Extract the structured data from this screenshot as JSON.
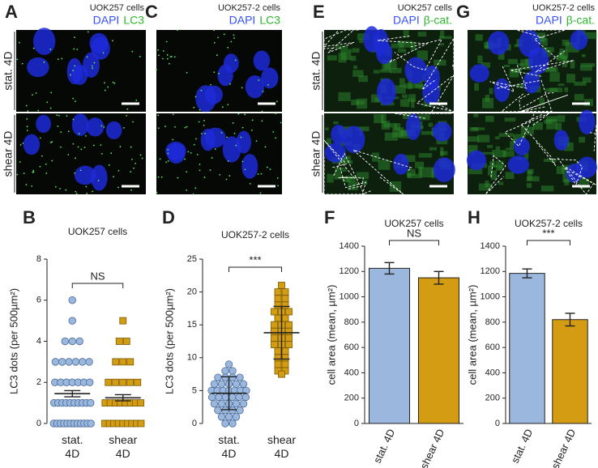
{
  "image_panels": [
    {
      "panel": "A",
      "title": "UOK257 cells",
      "channels": [
        {
          "name": "DAPI",
          "color": "#3450ff"
        },
        {
          "name": "LC3",
          "color": "#2db82d"
        }
      ],
      "row_labels": [
        "stat. 4D",
        "shear 4D"
      ],
      "outlines": false
    },
    {
      "panel": "C",
      "title": "UOK257-2 cells",
      "channels": [
        {
          "name": "DAPI",
          "color": "#3450ff"
        },
        {
          "name": "LC3",
          "color": "#2db82d"
        }
      ],
      "outlines": false
    },
    {
      "panel": "E",
      "title": "UOK257 cells",
      "channels": [
        {
          "name": "DAPI",
          "color": "#3450ff"
        },
        {
          "name": "β-cat.",
          "color": "#2db82d"
        }
      ],
      "row_labels": [
        "stat. 4D",
        "shear 4D"
      ],
      "outlines": true
    },
    {
      "panel": "G",
      "title": "UOK257-2 cells",
      "channels": [
        {
          "name": "DAPI",
          "color": "#3450ff"
        },
        {
          "name": "β-cat.",
          "color": "#2db82d"
        }
      ],
      "outlines": true
    }
  ],
  "chart_data": [
    {
      "type": "strip",
      "panel": "B",
      "title": "UOK257 cells",
      "y_label": "LC3 dots (per 500µm²)",
      "categories": [
        "stat. 4D",
        "shear 4D"
      ],
      "ylim": [
        0,
        8
      ],
      "yticks": [
        0,
        2,
        4,
        6,
        8
      ],
      "series": [
        {
          "name": "stat. 4D",
          "color": "#9bb7de",
          "edge": "#4a6c9b",
          "mean": 1.45,
          "error": 0.15,
          "values": [
            6,
            5,
            4,
            4,
            4,
            3,
            3,
            3,
            3,
            3,
            3,
            2,
            2,
            2,
            2,
            2,
            2,
            2,
            1,
            1,
            1,
            1,
            1,
            1,
            1,
            1,
            1,
            1,
            0,
            0,
            0,
            0,
            0,
            0,
            0,
            0,
            0,
            0,
            0,
            0
          ]
        },
        {
          "name": "shear 4D",
          "color": "#d39c12",
          "edge": "#7a5a00",
          "mean": 1.25,
          "error": 0.15,
          "values": [
            5,
            4,
            4,
            3,
            3,
            3,
            2,
            2,
            2,
            2,
            2,
            1,
            1,
            1,
            1,
            1,
            1,
            1,
            1,
            0,
            0,
            0,
            0,
            0,
            0,
            0,
            0,
            0
          ]
        }
      ],
      "annotation": "NS"
    },
    {
      "type": "strip",
      "panel": "D",
      "title": "UOK257-2 cells",
      "y_label": "LC3 dots (per 500µm²)",
      "categories": [
        "stat. 4D",
        "shear 4D"
      ],
      "ylim": [
        0,
        25
      ],
      "yticks": [
        0,
        5,
        10,
        15,
        20,
        25
      ],
      "series": [
        {
          "name": "stat. 4D",
          "color": "#9bb7de",
          "edge": "#4a6c9b",
          "mean": 4.6,
          "error": 2.5,
          "values": [
            9,
            8,
            8,
            7,
            7,
            7,
            7,
            6,
            6,
            6,
            6,
            6,
            5,
            5,
            5,
            5,
            5,
            5,
            5,
            4,
            4,
            4,
            4,
            4,
            4,
            3,
            3,
            3,
            3,
            3,
            2,
            2,
            2,
            2,
            1,
            1,
            1,
            0,
            0
          ]
        },
        {
          "name": "shear 4D",
          "color": "#d39c12",
          "edge": "#7a5a00",
          "mean": 13.8,
          "error": 4,
          "values": [
            21,
            20,
            20,
            19,
            19,
            18,
            18,
            17,
            17,
            17,
            16,
            16,
            15,
            15,
            15,
            14,
            14,
            14,
            13,
            13,
            13,
            12,
            12,
            12,
            11,
            11,
            10,
            10,
            9,
            9,
            8,
            8,
            7.5
          ]
        }
      ],
      "annotation": "***"
    },
    {
      "type": "bar",
      "panel": "F",
      "title": "UOK257 cells",
      "y_label": "cell area (mean, µm²)",
      "categories": [
        "stat. 4D",
        "shear 4D"
      ],
      "values": [
        1225,
        1150
      ],
      "errors": [
        45,
        50
      ],
      "colors": [
        "#9bb7de",
        "#d39c12"
      ],
      "ylim": [
        0,
        1400
      ],
      "yticks": [
        0,
        200,
        400,
        600,
        800,
        1000,
        1200,
        1400
      ],
      "annotation": "NS"
    },
    {
      "type": "bar",
      "panel": "H",
      "title": "UOK257-2 cells",
      "y_label": "cell area (mean, µm²)",
      "categories": [
        "stat. 4D",
        "shear 4D"
      ],
      "values": [
        1185,
        820
      ],
      "errors": [
        35,
        50
      ],
      "colors": [
        "#9bb7de",
        "#d39c12"
      ],
      "ylim": [
        0,
        1400
      ],
      "yticks": [
        0,
        200,
        400,
        600,
        800,
        1000,
        1200,
        1400
      ],
      "annotation": "***"
    }
  ]
}
